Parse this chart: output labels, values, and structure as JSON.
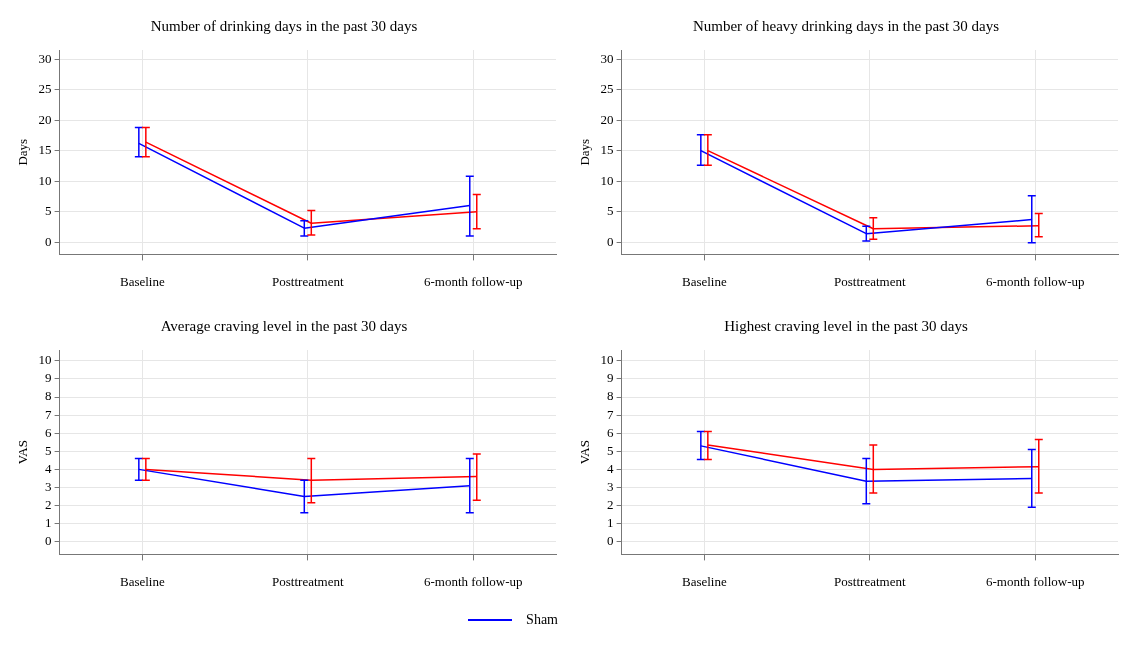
{
  "chart_data": [
    {
      "type": "line",
      "title": "Number of drinking days in the past 30 days",
      "ylabel": "Days",
      "categories": [
        "Baseline",
        "Posttreatment",
        "6-month follow-up"
      ],
      "ylim": [
        -2,
        31.5
      ],
      "yticks": [
        0,
        5,
        10,
        15,
        20,
        25,
        30
      ],
      "grid": true,
      "marker": "none",
      "legend": false,
      "series": [
        {
          "color": "#0000ff",
          "values": [
            16.2,
            2.3,
            6.0
          ],
          "errors": [
            [
              14,
              18.8
            ],
            [
              1,
              3.5
            ],
            [
              1,
              10.8
            ]
          ]
        },
        {
          "color": "#ff0000",
          "values": [
            16.4,
            3.1,
            5.0
          ],
          "errors": [
            [
              14,
              18.8
            ],
            [
              1.2,
              5.2
            ],
            [
              2.2,
              7.8
            ]
          ]
        }
      ]
    },
    {
      "type": "line",
      "title": "Number of heavy drinking days in the past 30 days",
      "ylabel": "Days",
      "categories": [
        "Baseline",
        "Posttreatment",
        "6-month follow-up"
      ],
      "ylim": [
        -2,
        31.5
      ],
      "yticks": [
        0,
        5,
        10,
        15,
        20,
        25,
        30
      ],
      "grid": true,
      "marker": "none",
      "legend": false,
      "series": [
        {
          "color": "#0000ff",
          "values": [
            15.0,
            1.4,
            3.7
          ],
          "errors": [
            [
              12.6,
              17.6
            ],
            [
              0.2,
              2.6
            ],
            [
              -0.1,
              7.6
            ]
          ]
        },
        {
          "color": "#ff0000",
          "values": [
            15.0,
            2.2,
            2.7
          ],
          "errors": [
            [
              12.6,
              17.6
            ],
            [
              0.5,
              4.0
            ],
            [
              0.9,
              4.7
            ]
          ]
        }
      ]
    },
    {
      "type": "line",
      "title": "Average craving level in the past 30 days",
      "ylabel": "VAS",
      "categories": [
        "Baseline",
        "Posttreatment",
        "6-month follow-up"
      ],
      "ylim": [
        -0.7,
        10.6
      ],
      "yticks": [
        0,
        1,
        2,
        3,
        4,
        5,
        6,
        7,
        8,
        9,
        10
      ],
      "grid": true,
      "marker": "none",
      "legend": "bottom right",
      "series": [
        {
          "name": "Sham",
          "color": "#0000ff",
          "values": [
            4.0,
            2.5,
            3.1
          ],
          "errors": [
            [
              3.4,
              4.6
            ],
            [
              1.6,
              3.4
            ],
            [
              1.6,
              4.6
            ]
          ]
        },
        {
          "color": "#ff0000",
          "values": [
            4.0,
            3.4,
            3.6
          ],
          "errors": [
            [
              3.4,
              4.6
            ],
            [
              2.15,
              4.6
            ],
            [
              2.3,
              4.85
            ]
          ]
        }
      ]
    },
    {
      "type": "line",
      "title": "Highest craving level in the past 30 days",
      "ylabel": "VAS",
      "categories": [
        "Baseline",
        "Posttreatment",
        "6-month follow-up"
      ],
      "ylim": [
        -0.7,
        10.6
      ],
      "yticks": [
        0,
        1,
        2,
        3,
        4,
        5,
        6,
        7,
        8,
        9,
        10
      ],
      "grid": true,
      "marker": "none",
      "legend": false,
      "series": [
        {
          "color": "#0000ff",
          "values": [
            5.3,
            3.35,
            3.5
          ],
          "errors": [
            [
              4.55,
              6.1
            ],
            [
              2.1,
              4.6
            ],
            [
              1.9,
              5.1
            ]
          ]
        },
        {
          "color": "#ff0000",
          "values": [
            5.35,
            4.0,
            4.15
          ],
          "errors": [
            [
              4.55,
              6.1
            ],
            [
              2.7,
              5.35
            ],
            [
              2.7,
              5.65
            ]
          ]
        }
      ]
    }
  ]
}
